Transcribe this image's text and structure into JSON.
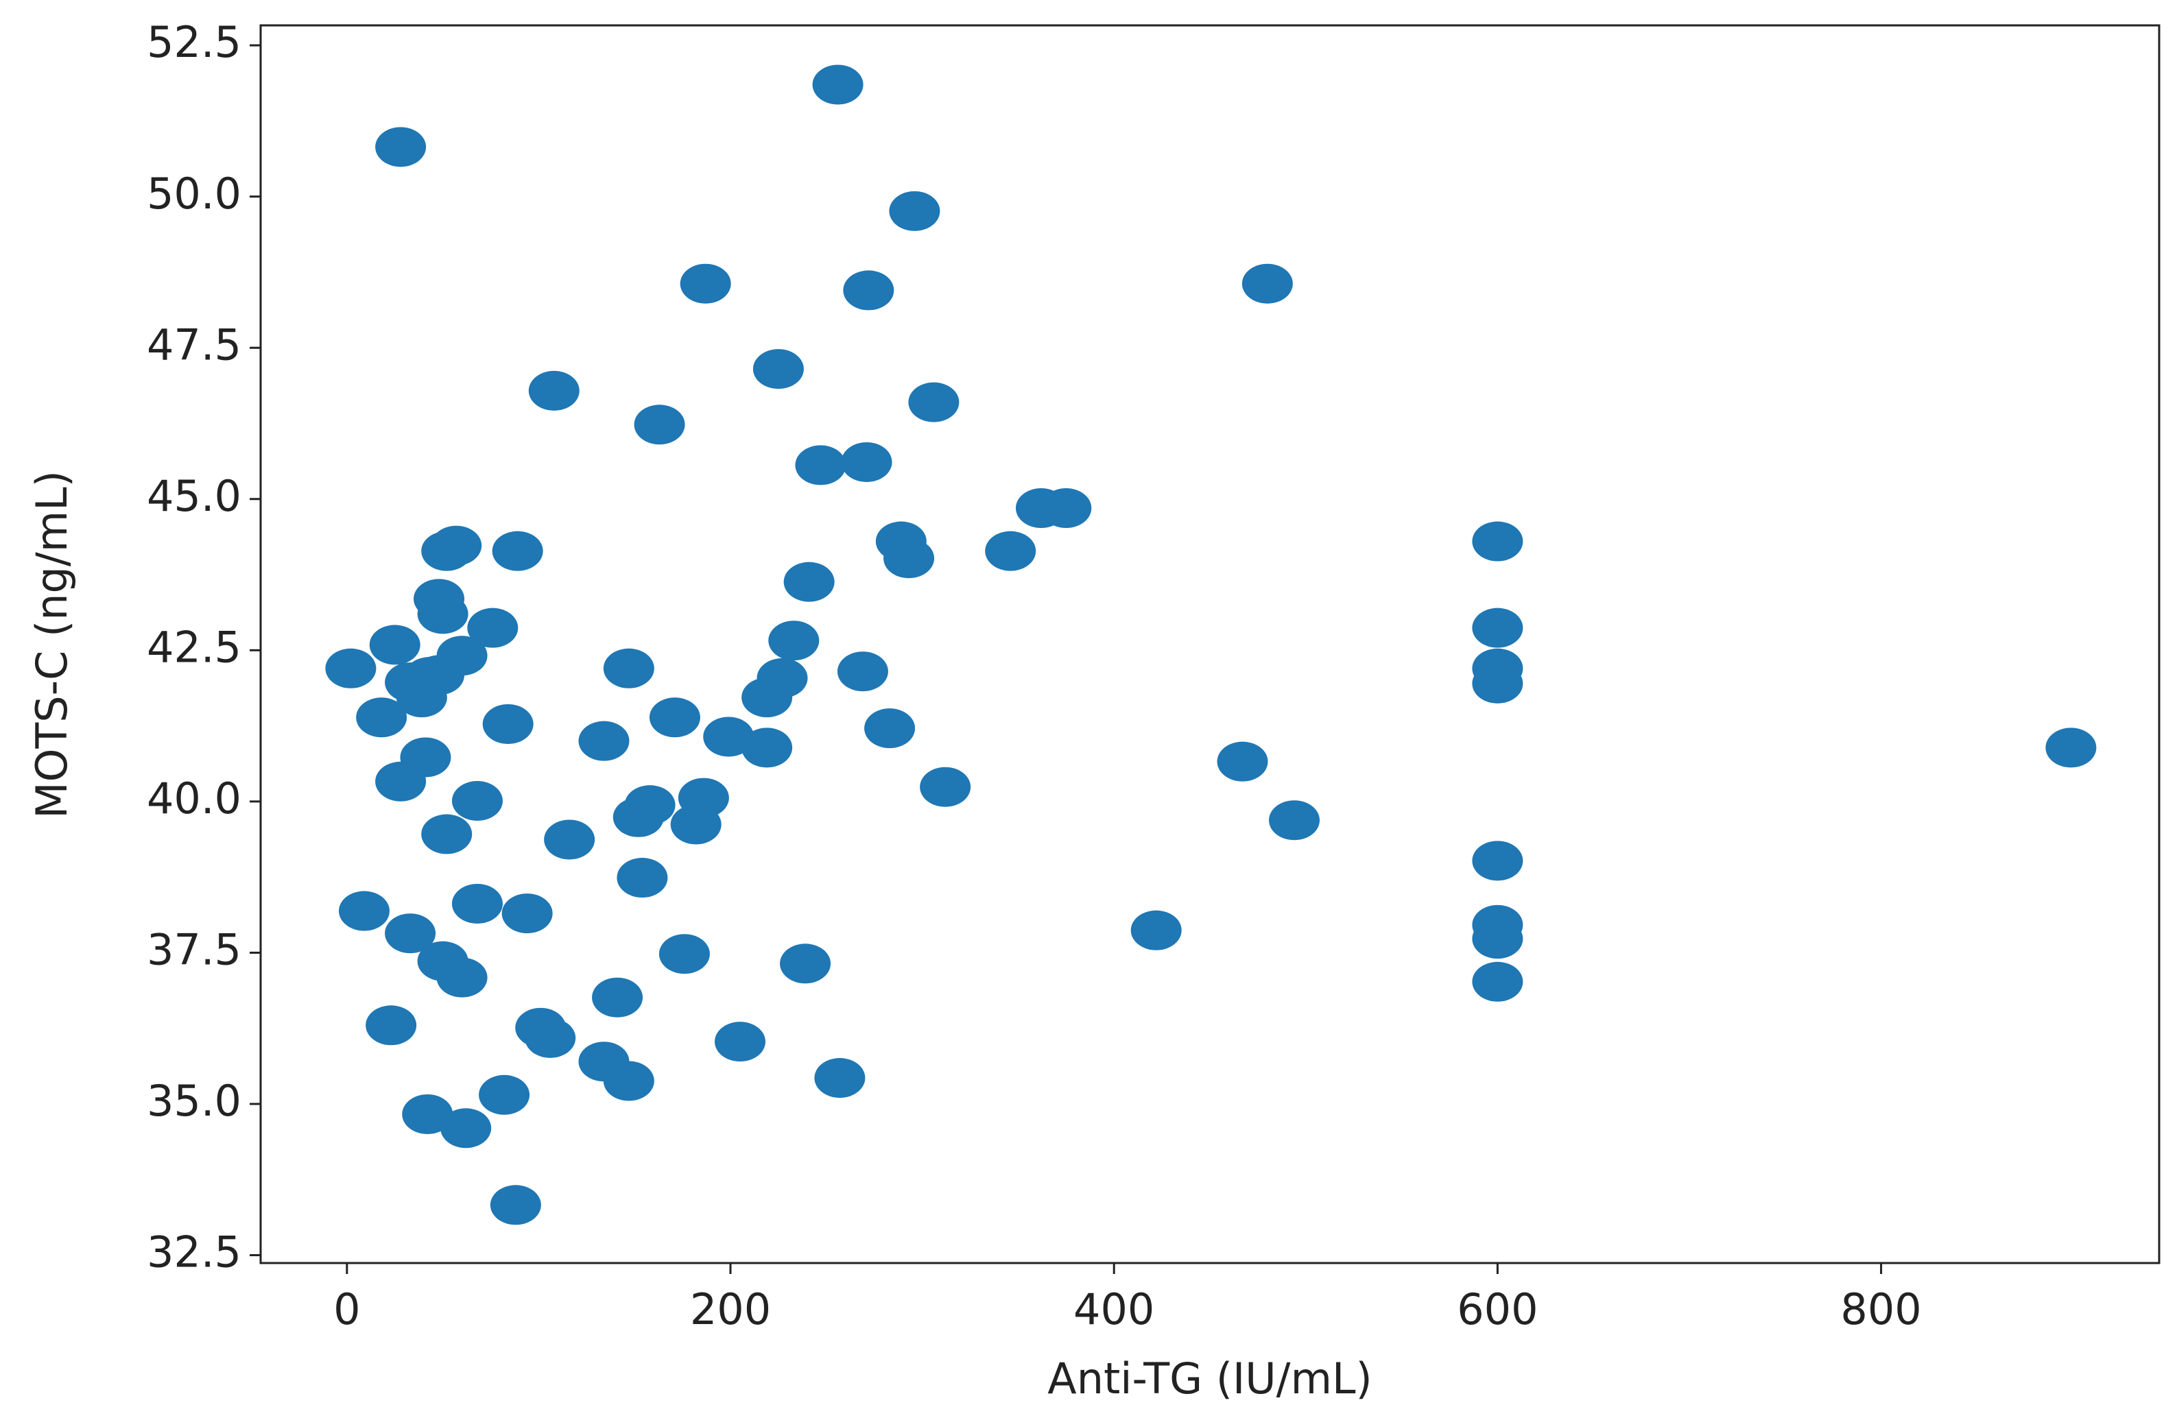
{
  "chart_data": {
    "type": "scatter",
    "xlabel": "Anti-TG (IU/mL)",
    "ylabel": "MOTS-C (ng/mL)",
    "color": "#1f77b4",
    "xlim": [
      -45,
      945
    ],
    "ylim": [
      32.37,
      52.83
    ],
    "xticks": [
      0,
      200,
      400,
      600,
      800
    ],
    "yticks": [
      32.5,
      {
        "value": 35,
        "label": "35.0"
      },
      37.5,
      {
        "value": 40,
        "label": "40.0"
      },
      42.5,
      {
        "value": 45,
        "label": "45.0"
      },
      47.5,
      {
        "value": 50,
        "label": "50.0"
      },
      52.5
    ],
    "x": [
      2,
      28,
      256,
      296,
      187,
      272,
      480,
      225,
      108,
      306,
      163,
      247,
      271,
      362,
      375,
      289,
      293,
      346,
      600,
      52,
      57,
      89,
      241,
      48,
      50,
      76,
      600,
      25,
      233,
      60,
      147,
      269,
      600,
      600,
      33,
      43,
      48,
      39,
      227,
      219,
      18,
      84,
      171,
      283,
      134,
      199,
      219,
      899,
      41,
      467,
      312,
      28,
      68,
      158,
      186,
      152,
      494,
      182,
      52,
      116,
      600,
      154,
      9,
      68,
      94,
      33,
      422,
      600,
      600,
      176,
      50,
      239,
      60,
      600,
      141,
      23,
      101,
      106,
      205,
      134,
      147,
      257,
      82,
      42,
      62,
      88
    ],
    "y": [
      42.2,
      50.82,
      51.85,
      49.76,
      48.56,
      48.45,
      48.56,
      47.15,
      46.79,
      46.6,
      46.23,
      45.56,
      45.61,
      44.85,
      44.85,
      44.3,
      44.02,
      44.14,
      44.3,
      44.14,
      44.23,
      44.14,
      43.63,
      43.35,
      43.1,
      42.87,
      42.87,
      42.59,
      42.66,
      42.41,
      42.2,
      42.15,
      42.2,
      41.95,
      41.97,
      42.06,
      42.09,
      41.72,
      42.04,
      41.72,
      41.39,
      41.28,
      41.39,
      41.21,
      41.0,
      41.07,
      40.89,
      40.89,
      40.73,
      40.66,
      40.24,
      40.33,
      40.01,
      39.94,
      40.06,
      39.74,
      39.69,
      39.62,
      39.46,
      39.37,
      39.02,
      38.74,
      38.19,
      38.31,
      38.15,
      37.82,
      37.87,
      37.96,
      37.73,
      37.48,
      37.36,
      37.32,
      37.09,
      37.02,
      36.76,
      36.3,
      36.26,
      36.09,
      36.03,
      35.7,
      35.38,
      35.43,
      35.15,
      34.83,
      34.6,
      33.33
    ]
  }
}
